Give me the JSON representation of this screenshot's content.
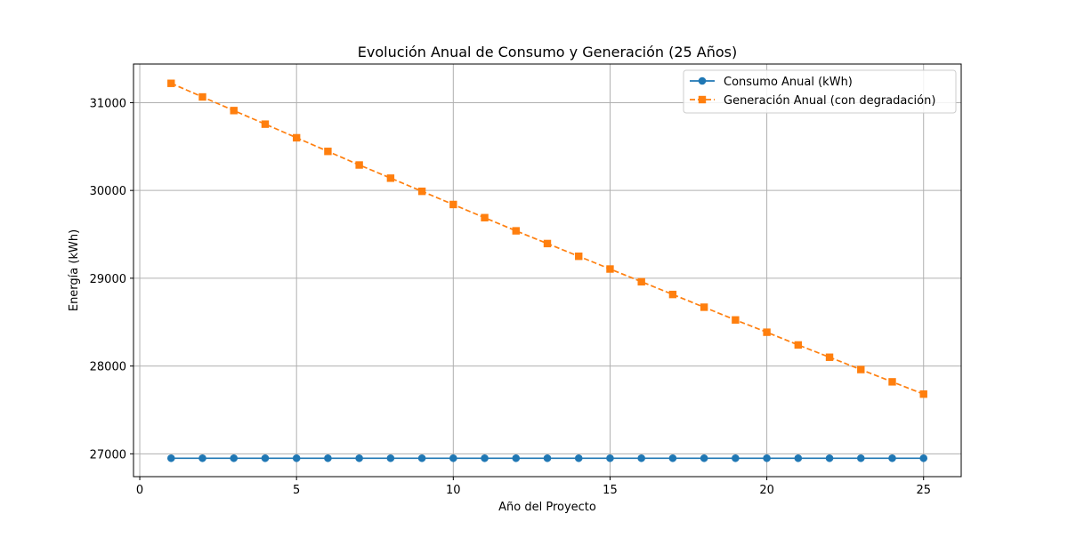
{
  "chart_data": {
    "type": "line",
    "title": "Evolución Anual de Consumo y Generación (25 Años)",
    "xlabel": "Año del Proyecto",
    "ylabel": "Energía (kWh)",
    "xlim": [
      -0.2,
      26.2
    ],
    "ylim": [
      26740,
      31440
    ],
    "xticks": [
      0,
      5,
      10,
      15,
      20,
      25
    ],
    "yticks": [
      27000,
      28000,
      29000,
      30000,
      31000
    ],
    "grid": true,
    "legend_position": "top-right",
    "x": [
      1,
      2,
      3,
      4,
      5,
      6,
      7,
      8,
      9,
      10,
      11,
      12,
      13,
      14,
      15,
      16,
      17,
      18,
      19,
      20,
      21,
      22,
      23,
      24,
      25
    ],
    "series": [
      {
        "name": "Consumo Anual (kWh)",
        "color": "#1f77b4",
        "marker": "circle",
        "line_style": "solid",
        "values": [
          26950,
          26950,
          26950,
          26950,
          26950,
          26950,
          26950,
          26950,
          26950,
          26950,
          26950,
          26950,
          26950,
          26950,
          26950,
          26950,
          26950,
          26950,
          26950,
          26950,
          26950,
          26950,
          26950,
          26950,
          26950
        ]
      },
      {
        "name": "Generación Anual (con degradación)",
        "color": "#ff7f0e",
        "marker": "square",
        "line_style": "dashed",
        "values": [
          31220,
          31065,
          30910,
          30755,
          30600,
          30445,
          30290,
          30140,
          29990,
          29840,
          29690,
          29540,
          29395,
          29250,
          29105,
          28960,
          28815,
          28670,
          28525,
          28385,
          28240,
          28100,
          27960,
          27820,
          27680
        ]
      }
    ]
  }
}
